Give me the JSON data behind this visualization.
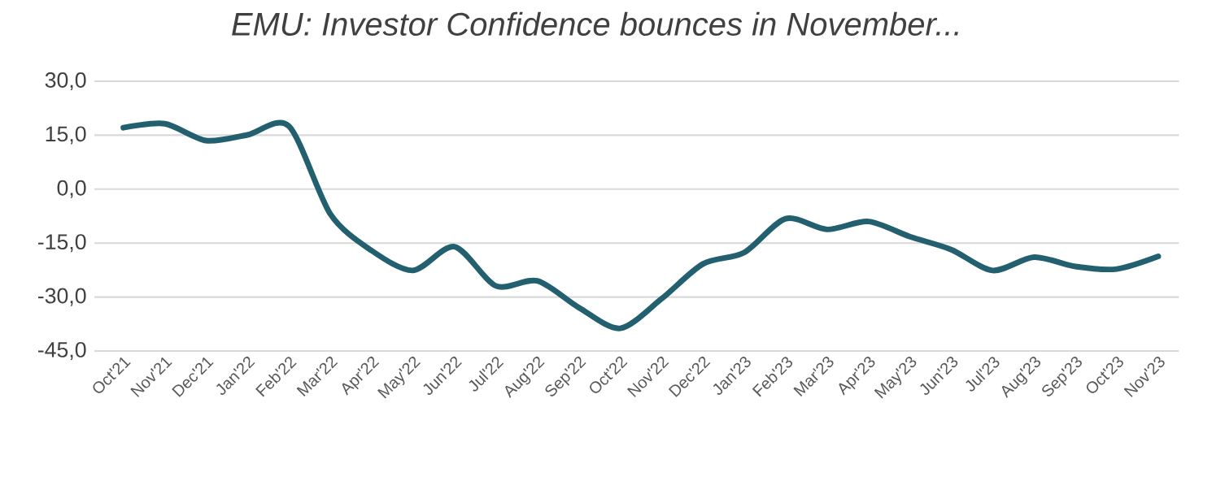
{
  "chart_data": {
    "type": "line",
    "title": "EMU: Investor Confidence bounces  in November...",
    "categories": [
      "Oct'21",
      "Nov'21",
      "Dec'21",
      "Jan'22",
      "Feb'22",
      "Mar'22",
      "Apr'22",
      "May'22",
      "Jun'22",
      "Jul'22",
      "Aug'22",
      "Sep'22",
      "Oct'22",
      "Nov'22",
      "Dec'22",
      "Jan'23",
      "Feb'23",
      "Mar'23",
      "Apr'23",
      "May'23",
      "Jun'23",
      "Jul'23",
      "Aug'23",
      "Sep'23",
      "Oct'23",
      "Nov'23"
    ],
    "series": [
      {
        "color": "#22606f",
        "values": [
          17.1,
          18.2,
          13.5,
          15.1,
          17.5,
          -6.9,
          -17.1,
          -22.6,
          -16.0,
          -26.9,
          -25.5,
          -32.9,
          -38.7,
          -30.5,
          -20.8,
          -17.6,
          -8.2,
          -11.2,
          -9.0,
          -13.2,
          -16.8,
          -22.6,
          -18.9,
          -21.5,
          -22.2,
          -18.7
        ]
      }
    ],
    "ylim": [
      -45,
      30
    ],
    "yticks": [
      {
        "value": -45,
        "label": "-45,0"
      },
      {
        "value": -30,
        "label": "-30,0"
      },
      {
        "value": -15,
        "label": "-15,0"
      },
      {
        "value": 0,
        "label": "0,0"
      },
      {
        "value": 15,
        "label": "15,0"
      },
      {
        "value": 30,
        "label": "30,0"
      }
    ],
    "grid": "y",
    "marker": "none",
    "line_style": "solid"
  }
}
